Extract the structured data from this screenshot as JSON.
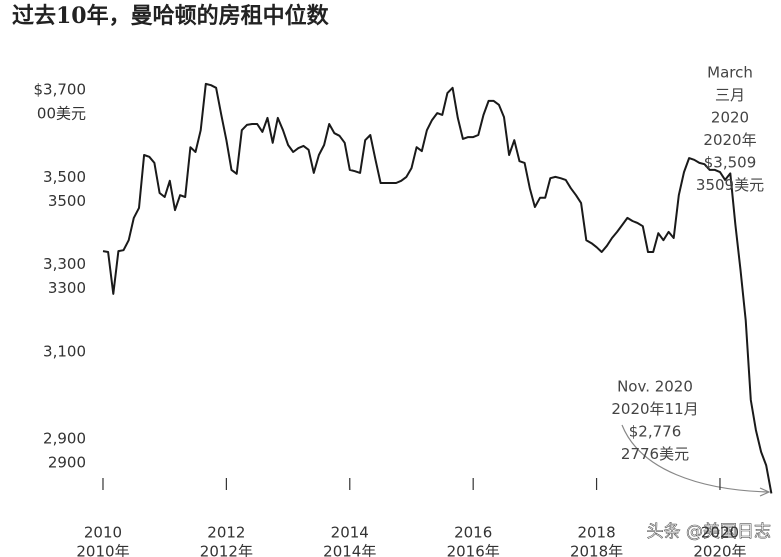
{
  "chart_data": {
    "type": "line",
    "title": "过去10年，曼哈顿的房租中位数",
    "series": [
      {
        "color": "#1a1a1a",
        "x": [
          2010,
          2010.083,
          2010.167,
          2010.25,
          2010.333,
          2010.417,
          2010.5,
          2010.583,
          2010.667,
          2010.75,
          2010.833,
          2010.917,
          2011,
          2011.083,
          2011.167,
          2011.25,
          2011.333,
          2011.417,
          2011.5,
          2011.583,
          2011.667,
          2011.75,
          2011.833,
          2011.917,
          2012,
          2012.083,
          2012.167,
          2012.25,
          2012.333,
          2012.417,
          2012.5,
          2012.583,
          2012.667,
          2012.75,
          2012.833,
          2012.917,
          2013,
          2013.083,
          2013.167,
          2013.25,
          2013.333,
          2013.417,
          2013.5,
          2013.583,
          2013.667,
          2013.75,
          2013.833,
          2013.917,
          2014,
          2014.083,
          2014.167,
          2014.25,
          2014.333,
          2014.417,
          2014.5,
          2014.583,
          2014.667,
          2014.75,
          2014.833,
          2014.917,
          2015,
          2015.083,
          2015.167,
          2015.25,
          2015.333,
          2015.417,
          2015.5,
          2015.583,
          2015.667,
          2015.75,
          2015.833,
          2015.917,
          2016,
          2016.083,
          2016.167,
          2016.25,
          2016.333,
          2016.417,
          2016.5,
          2016.583,
          2016.667,
          2016.75,
          2016.833,
          2016.917,
          2017,
          2017.083,
          2017.167,
          2017.25,
          2017.333,
          2017.417,
          2017.5,
          2017.583,
          2017.667,
          2017.75,
          2017.833,
          2017.917,
          2018,
          2018.083,
          2018.167,
          2018.25,
          2018.333,
          2018.417,
          2018.5,
          2018.583,
          2018.667,
          2018.75,
          2018.833,
          2018.917,
          2019,
          2019.083,
          2019.167,
          2019.25,
          2019.333,
          2019.417,
          2019.5,
          2019.583,
          2019.667,
          2019.75,
          2019.833,
          2019.917,
          2020,
          2020.083,
          2020.167,
          2020.25,
          2020.333,
          2020.417,
          2020.5,
          2020.583,
          2020.667,
          2020.75,
          2020.833
        ],
        "values": [
          3331,
          3329,
          3233,
          3331,
          3333,
          3356,
          3407,
          3430,
          3551,
          3547,
          3533,
          3464,
          3455,
          3492,
          3425,
          3459,
          3455,
          3569,
          3558,
          3608,
          3714,
          3711,
          3705,
          3643,
          3585,
          3517,
          3508,
          3608,
          3620,
          3622,
          3622,
          3604,
          3636,
          3579,
          3636,
          3608,
          3574,
          3558,
          3567,
          3572,
          3563,
          3510,
          3551,
          3574,
          3622,
          3601,
          3595,
          3579,
          3517,
          3514,
          3510,
          3585,
          3597,
          3540,
          3487,
          3487,
          3487,
          3487,
          3492,
          3501,
          3521,
          3569,
          3560,
          3608,
          3631,
          3647,
          3643,
          3693,
          3705,
          3636,
          3588,
          3592,
          3592,
          3597,
          3643,
          3675,
          3675,
          3666,
          3638,
          3551,
          3585,
          3537,
          3533,
          3475,
          3432,
          3453,
          3453,
          3498,
          3501,
          3498,
          3494,
          3475,
          3459,
          3441,
          3356,
          3349,
          3340,
          3329,
          3343,
          3361,
          3375,
          3391,
          3407,
          3400,
          3395,
          3388,
          3329,
          3329,
          3372,
          3356,
          3375,
          3361,
          3459,
          3512,
          3544,
          3540,
          3533,
          3530,
          3517,
          3517,
          3512,
          3494,
          3509,
          3391,
          3288,
          3173,
          2990,
          2921,
          2871,
          2840,
          2776
        ]
      }
    ],
    "xlim": [
      2009.95,
      2020.9
    ],
    "xticks": [
      {
        "value": 2010,
        "label": "2010",
        "label2": "2010年"
      },
      {
        "value": 2012,
        "label": "2012",
        "label2": "2012年"
      },
      {
        "value": 2014,
        "label": "2014",
        "label2": "2014年"
      },
      {
        "value": 2016,
        "label": "2016",
        "label2": "2016年"
      },
      {
        "value": 2018,
        "label": "2018",
        "label2": "2018年"
      },
      {
        "value": 2020,
        "label": "2020",
        "label2": "2020年"
      }
    ],
    "ylim": [
      2770,
      3730
    ],
    "yticks": [
      {
        "value": 2900,
        "label": "2,900",
        "label2": "2900"
      },
      {
        "value": 3100,
        "label": "3,100"
      },
      {
        "value": 3300,
        "label": "3,300",
        "label2": "3300"
      },
      {
        "value": 3500,
        "label": "3,500",
        "label2": "3500"
      },
      {
        "value": 3700,
        "label": "$3,700",
        "label2": "00美元"
      }
    ],
    "annotations": [
      [
        "March",
        "三月",
        "2020",
        "2020年",
        "$3,509",
        "3509美元"
      ],
      [
        "Nov. 2020",
        "2020年11月",
        "$2,776",
        "2776美元"
      ]
    ],
    "watermark": "头条 @美国日志"
  }
}
